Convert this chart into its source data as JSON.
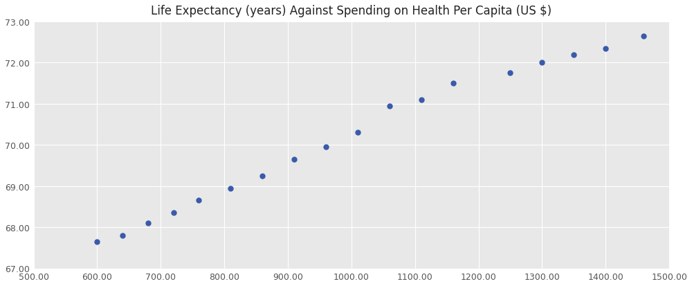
{
  "title": "Life Expectancy (years) Against Spending on Health Per Capita (US $)",
  "x": [
    600,
    640,
    680,
    720,
    760,
    810,
    860,
    910,
    960,
    1010,
    1060,
    1110,
    1160,
    1250,
    1300,
    1350,
    1400,
    1460
  ],
  "y": [
    67.65,
    67.8,
    68.1,
    68.35,
    68.65,
    68.95,
    69.25,
    69.65,
    69.95,
    70.3,
    70.95,
    71.1,
    71.5,
    71.75,
    72.0,
    72.2,
    72.35,
    72.65
  ],
  "xlim": [
    500,
    1500
  ],
  "ylim": [
    67.0,
    73.0
  ],
  "xticks": [
    500,
    600,
    700,
    800,
    900,
    1000,
    1100,
    1200,
    1300,
    1400,
    1500
  ],
  "yticks": [
    67.0,
    68.0,
    69.0,
    70.0,
    71.0,
    72.0,
    73.0
  ],
  "plot_bg_color": "#e8e8e8",
  "dot_color": "#3a5aab",
  "dot_size": 25,
  "title_fontsize": 12,
  "tick_fontsize": 9,
  "grid_color": "#ffffff",
  "figure_bg": "#ffffff",
  "tick_color": "#555555"
}
